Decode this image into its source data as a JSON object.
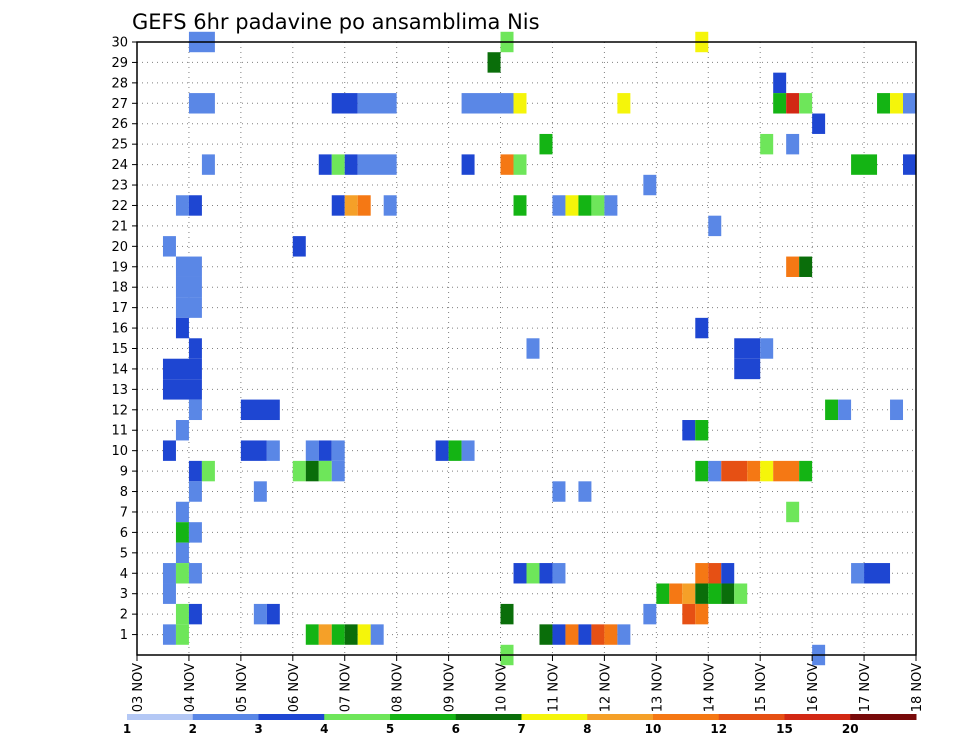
{
  "chart_data": {
    "type": "heatmap",
    "title": "GEFS 6hr padavine po ansamblima Nis",
    "xlabel": "",
    "ylabel": "",
    "x_tick_labels": [
      "03 NOV",
      "04 NOV",
      "05 NOV",
      "06 NOV",
      "07 NOV",
      "08 NOV",
      "09 NOV",
      "10 NOV",
      "11 NOV",
      "12 NOV",
      "13 NOV",
      "14 NOV",
      "15 NOV",
      "16 NOV",
      "17 NOV",
      "18 NOV"
    ],
    "y_tick_labels": [
      "1",
      "2",
      "3",
      "4",
      "5",
      "6",
      "7",
      "8",
      "9",
      "10",
      "11",
      "12",
      "13",
      "14",
      "15",
      "16",
      "17",
      "18",
      "19",
      "20",
      "21",
      "22",
      "23",
      "24",
      "25",
      "26",
      "27",
      "28",
      "29",
      "30"
    ],
    "xlim": [
      3,
      18
    ],
    "ylim": [
      0,
      30
    ],
    "time_step_days": 0.25,
    "colorbar": {
      "levels": [
        "1",
        "2",
        "3",
        "4",
        "5",
        "6",
        "7",
        "8",
        "10",
        "12",
        "15",
        "20"
      ],
      "colors": [
        "#b4c8f5",
        "#5a87e6",
        "#1e46d2",
        "#6ee65a",
        "#14b414",
        "#0a6e0a",
        "#f5f50a",
        "#f5a028",
        "#f57814",
        "#e65014",
        "#d22814",
        "#780a0a"
      ]
    },
    "cells": [
      [
        30,
        4,
        4.5,
        1
      ],
      [
        30,
        10,
        10.25,
        3
      ],
      [
        30,
        13.75,
        14,
        6
      ],
      [
        29,
        9.75,
        10,
        5
      ],
      [
        28,
        15.25,
        15.5,
        2
      ],
      [
        27,
        4,
        4.5,
        1
      ],
      [
        27,
        6.75,
        7.25,
        2
      ],
      [
        27,
        7.25,
        8,
        1
      ],
      [
        27,
        9.25,
        10.25,
        1
      ],
      [
        27,
        10.25,
        10.5,
        6
      ],
      [
        27,
        12.25,
        12.5,
        6
      ],
      [
        27,
        15.25,
        15.5,
        4
      ],
      [
        27,
        15.5,
        15.75,
        10
      ],
      [
        27,
        15.75,
        16,
        3
      ],
      [
        27,
        17.25,
        17.5,
        4
      ],
      [
        27,
        17.5,
        17.75,
        6
      ],
      [
        27,
        17.75,
        18,
        1
      ],
      [
        26,
        16,
        16.25,
        2
      ],
      [
        25,
        10.75,
        11,
        4
      ],
      [
        25,
        15,
        15.25,
        3
      ],
      [
        25,
        15.5,
        15.75,
        1
      ],
      [
        24,
        4.25,
        4.5,
        1
      ],
      [
        24,
        6.5,
        6.75,
        2
      ],
      [
        24,
        6.75,
        7,
        3
      ],
      [
        24,
        7,
        7.25,
        2
      ],
      [
        24,
        7.25,
        8,
        1
      ],
      [
        24,
        9.25,
        9.5,
        2
      ],
      [
        24,
        10,
        10.25,
        8
      ],
      [
        24,
        10.25,
        10.5,
        3
      ],
      [
        24,
        16.75,
        17.25,
        4
      ],
      [
        24,
        17.75,
        18,
        2
      ],
      [
        23,
        12.75,
        13,
        1
      ],
      [
        22,
        3.75,
        4,
        1
      ],
      [
        22,
        4,
        4.25,
        2
      ],
      [
        22,
        6.75,
        7,
        2
      ],
      [
        22,
        7,
        7.25,
        7
      ],
      [
        22,
        7.25,
        7.5,
        8
      ],
      [
        22,
        7.75,
        8,
        1
      ],
      [
        22,
        10.25,
        10.5,
        4
      ],
      [
        22,
        11,
        11.25,
        1
      ],
      [
        22,
        11.25,
        11.5,
        6
      ],
      [
        22,
        11.5,
        11.75,
        4
      ],
      [
        22,
        11.75,
        12,
        3
      ],
      [
        22,
        12,
        12.25,
        1
      ],
      [
        21,
        14,
        14.25,
        1
      ],
      [
        20,
        3.5,
        3.75,
        1
      ],
      [
        20,
        6,
        6.25,
        2
      ],
      [
        19,
        3.75,
        4.25,
        1
      ],
      [
        19,
        15.5,
        15.75,
        8
      ],
      [
        19,
        15.75,
        16,
        5
      ],
      [
        18,
        3.75,
        4.25,
        1
      ],
      [
        17,
        3.75,
        4.25,
        1
      ],
      [
        16,
        3.75,
        4,
        2
      ],
      [
        16,
        13.75,
        14,
        2
      ],
      [
        15,
        4,
        4.25,
        2
      ],
      [
        15,
        10.5,
        10.75,
        1
      ],
      [
        15,
        14.5,
        15,
        2
      ],
      [
        15,
        15,
        15.25,
        1
      ],
      [
        14,
        3.5,
        4.25,
        2
      ],
      [
        14,
        14.5,
        15,
        2
      ],
      [
        13,
        3.5,
        4.25,
        2
      ],
      [
        12,
        4,
        4.25,
        1
      ],
      [
        12,
        5,
        5.75,
        2
      ],
      [
        12,
        16.25,
        16.5,
        4
      ],
      [
        12,
        16.5,
        16.75,
        1
      ],
      [
        12,
        17.5,
        17.75,
        1
      ],
      [
        11,
        3.75,
        4,
        1
      ],
      [
        11,
        13.5,
        13.75,
        2
      ],
      [
        11,
        13.75,
        14,
        4
      ],
      [
        10,
        3.5,
        3.75,
        2
      ],
      [
        10,
        5,
        5.5,
        2
      ],
      [
        10,
        5.5,
        5.75,
        1
      ],
      [
        10,
        6.25,
        6.5,
        1
      ],
      [
        10,
        6.5,
        6.75,
        2
      ],
      [
        10,
        6.75,
        7,
        1
      ],
      [
        10,
        8.75,
        9,
        2
      ],
      [
        10,
        9,
        9.25,
        4
      ],
      [
        10,
        9.25,
        9.5,
        1
      ],
      [
        9,
        4,
        4.25,
        2
      ],
      [
        9,
        4.25,
        4.5,
        3
      ],
      [
        9,
        6,
        6.25,
        3
      ],
      [
        9,
        6.25,
        6.5,
        5
      ],
      [
        9,
        6.5,
        6.75,
        3
      ],
      [
        9,
        6.75,
        7,
        1
      ],
      [
        9,
        13.75,
        14,
        4
      ],
      [
        9,
        14,
        14.25,
        1
      ],
      [
        9,
        14.25,
        14.75,
        9
      ],
      [
        9,
        14.75,
        15,
        8
      ],
      [
        9,
        15,
        15.25,
        6
      ],
      [
        9,
        15.25,
        15.75,
        8
      ],
      [
        9,
        15.75,
        16,
        4
      ],
      [
        8,
        4,
        4.25,
        1
      ],
      [
        8,
        5.25,
        5.5,
        1
      ],
      [
        8,
        11,
        11.25,
        1
      ],
      [
        8,
        11.5,
        11.75,
        1
      ],
      [
        7,
        3.75,
        4,
        1
      ],
      [
        7,
        15.5,
        15.75,
        3
      ],
      [
        6,
        3.75,
        4,
        4
      ],
      [
        6,
        4,
        4.25,
        1
      ],
      [
        5,
        3.75,
        4,
        1
      ],
      [
        4,
        3.5,
        3.75,
        1
      ],
      [
        4,
        3.75,
        4,
        3
      ],
      [
        4,
        4,
        4.25,
        1
      ],
      [
        4,
        10.25,
        10.5,
        2
      ],
      [
        4,
        10.5,
        10.75,
        3
      ],
      [
        4,
        10.75,
        11,
        2
      ],
      [
        4,
        11,
        11.25,
        1
      ],
      [
        4,
        13.75,
        14,
        8
      ],
      [
        4,
        14,
        14.25,
        9
      ],
      [
        4,
        14.25,
        14.5,
        2
      ],
      [
        4,
        16.75,
        17,
        1
      ],
      [
        4,
        17,
        17.5,
        2
      ],
      [
        3,
        3.5,
        3.75,
        1
      ],
      [
        3,
        13,
        13.25,
        4
      ],
      [
        3,
        13.25,
        13.5,
        8
      ],
      [
        3,
        13.5,
        13.75,
        7
      ],
      [
        3,
        13.75,
        14,
        5
      ],
      [
        3,
        14,
        14.25,
        4
      ],
      [
        3,
        14.25,
        14.5,
        5
      ],
      [
        3,
        14.5,
        14.75,
        3
      ],
      [
        2,
        3.75,
        4,
        3
      ],
      [
        2,
        4,
        4.25,
        2
      ],
      [
        2,
        5.25,
        5.5,
        1
      ],
      [
        2,
        5.5,
        5.75,
        2
      ],
      [
        2,
        10,
        10.25,
        5
      ],
      [
        2,
        12.75,
        13,
        1
      ],
      [
        2,
        13.5,
        13.75,
        9
      ],
      [
        2,
        13.75,
        14,
        8
      ],
      [
        1,
        3.5,
        3.75,
        1
      ],
      [
        1,
        3.75,
        4,
        3
      ],
      [
        1,
        6.25,
        6.5,
        4
      ],
      [
        1,
        6.5,
        6.75,
        7
      ],
      [
        1,
        6.75,
        7,
        4
      ],
      [
        1,
        7,
        7.25,
        5
      ],
      [
        1,
        7.25,
        7.5,
        6
      ],
      [
        1,
        7.5,
        7.75,
        1
      ],
      [
        1,
        10.75,
        11,
        5
      ],
      [
        1,
        11,
        11.25,
        2
      ],
      [
        1,
        11.25,
        11.5,
        8
      ],
      [
        1,
        11.5,
        11.75,
        2
      ],
      [
        1,
        11.75,
        12,
        9
      ],
      [
        1,
        12,
        12.25,
        8
      ],
      [
        1,
        12.25,
        12.5,
        1
      ],
      [
        0,
        10,
        10.25,
        3
      ],
      [
        0,
        16,
        16.25,
        1
      ]
    ]
  }
}
